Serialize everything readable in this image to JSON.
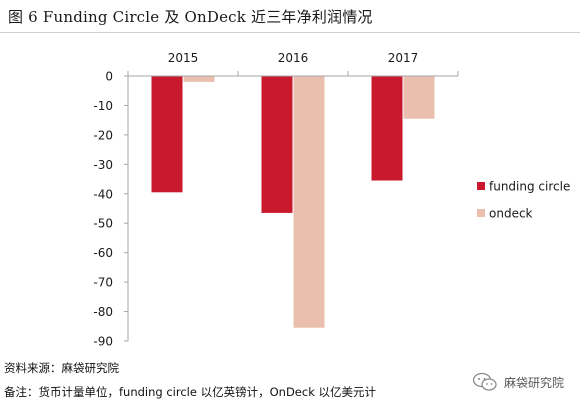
{
  "figure": {
    "title": "图 6   Funding Circle 及 OnDeck 近三年净利润情况"
  },
  "chart_data": {
    "type": "bar",
    "categories": [
      "2015",
      "2016",
      "2017"
    ],
    "series": [
      {
        "name": "funding circle",
        "values": [
          -39.5,
          -46.5,
          -35.5
        ],
        "color": "#c8192d"
      },
      {
        "name": "ondeck",
        "values": [
          -2,
          -85.5,
          -14.5
        ],
        "color": "#ebbfae"
      }
    ],
    "ylim": [
      -90,
      0
    ],
    "yticks": [
      0,
      -10,
      -20,
      -30,
      -40,
      -50,
      -60,
      -70,
      -80,
      -90
    ],
    "xlabel": "",
    "ylabel": "",
    "category_axis_position": "top",
    "grid": false,
    "legend_position": "right"
  },
  "footnotes": {
    "source": "资料来源：麻袋研究院",
    "note": "备注：货币计量单位，funding  circle 以亿英镑计，OnDeck 以亿美元计"
  },
  "watermark": {
    "icon": "wechat-icon",
    "text": "麻袋研究院"
  }
}
